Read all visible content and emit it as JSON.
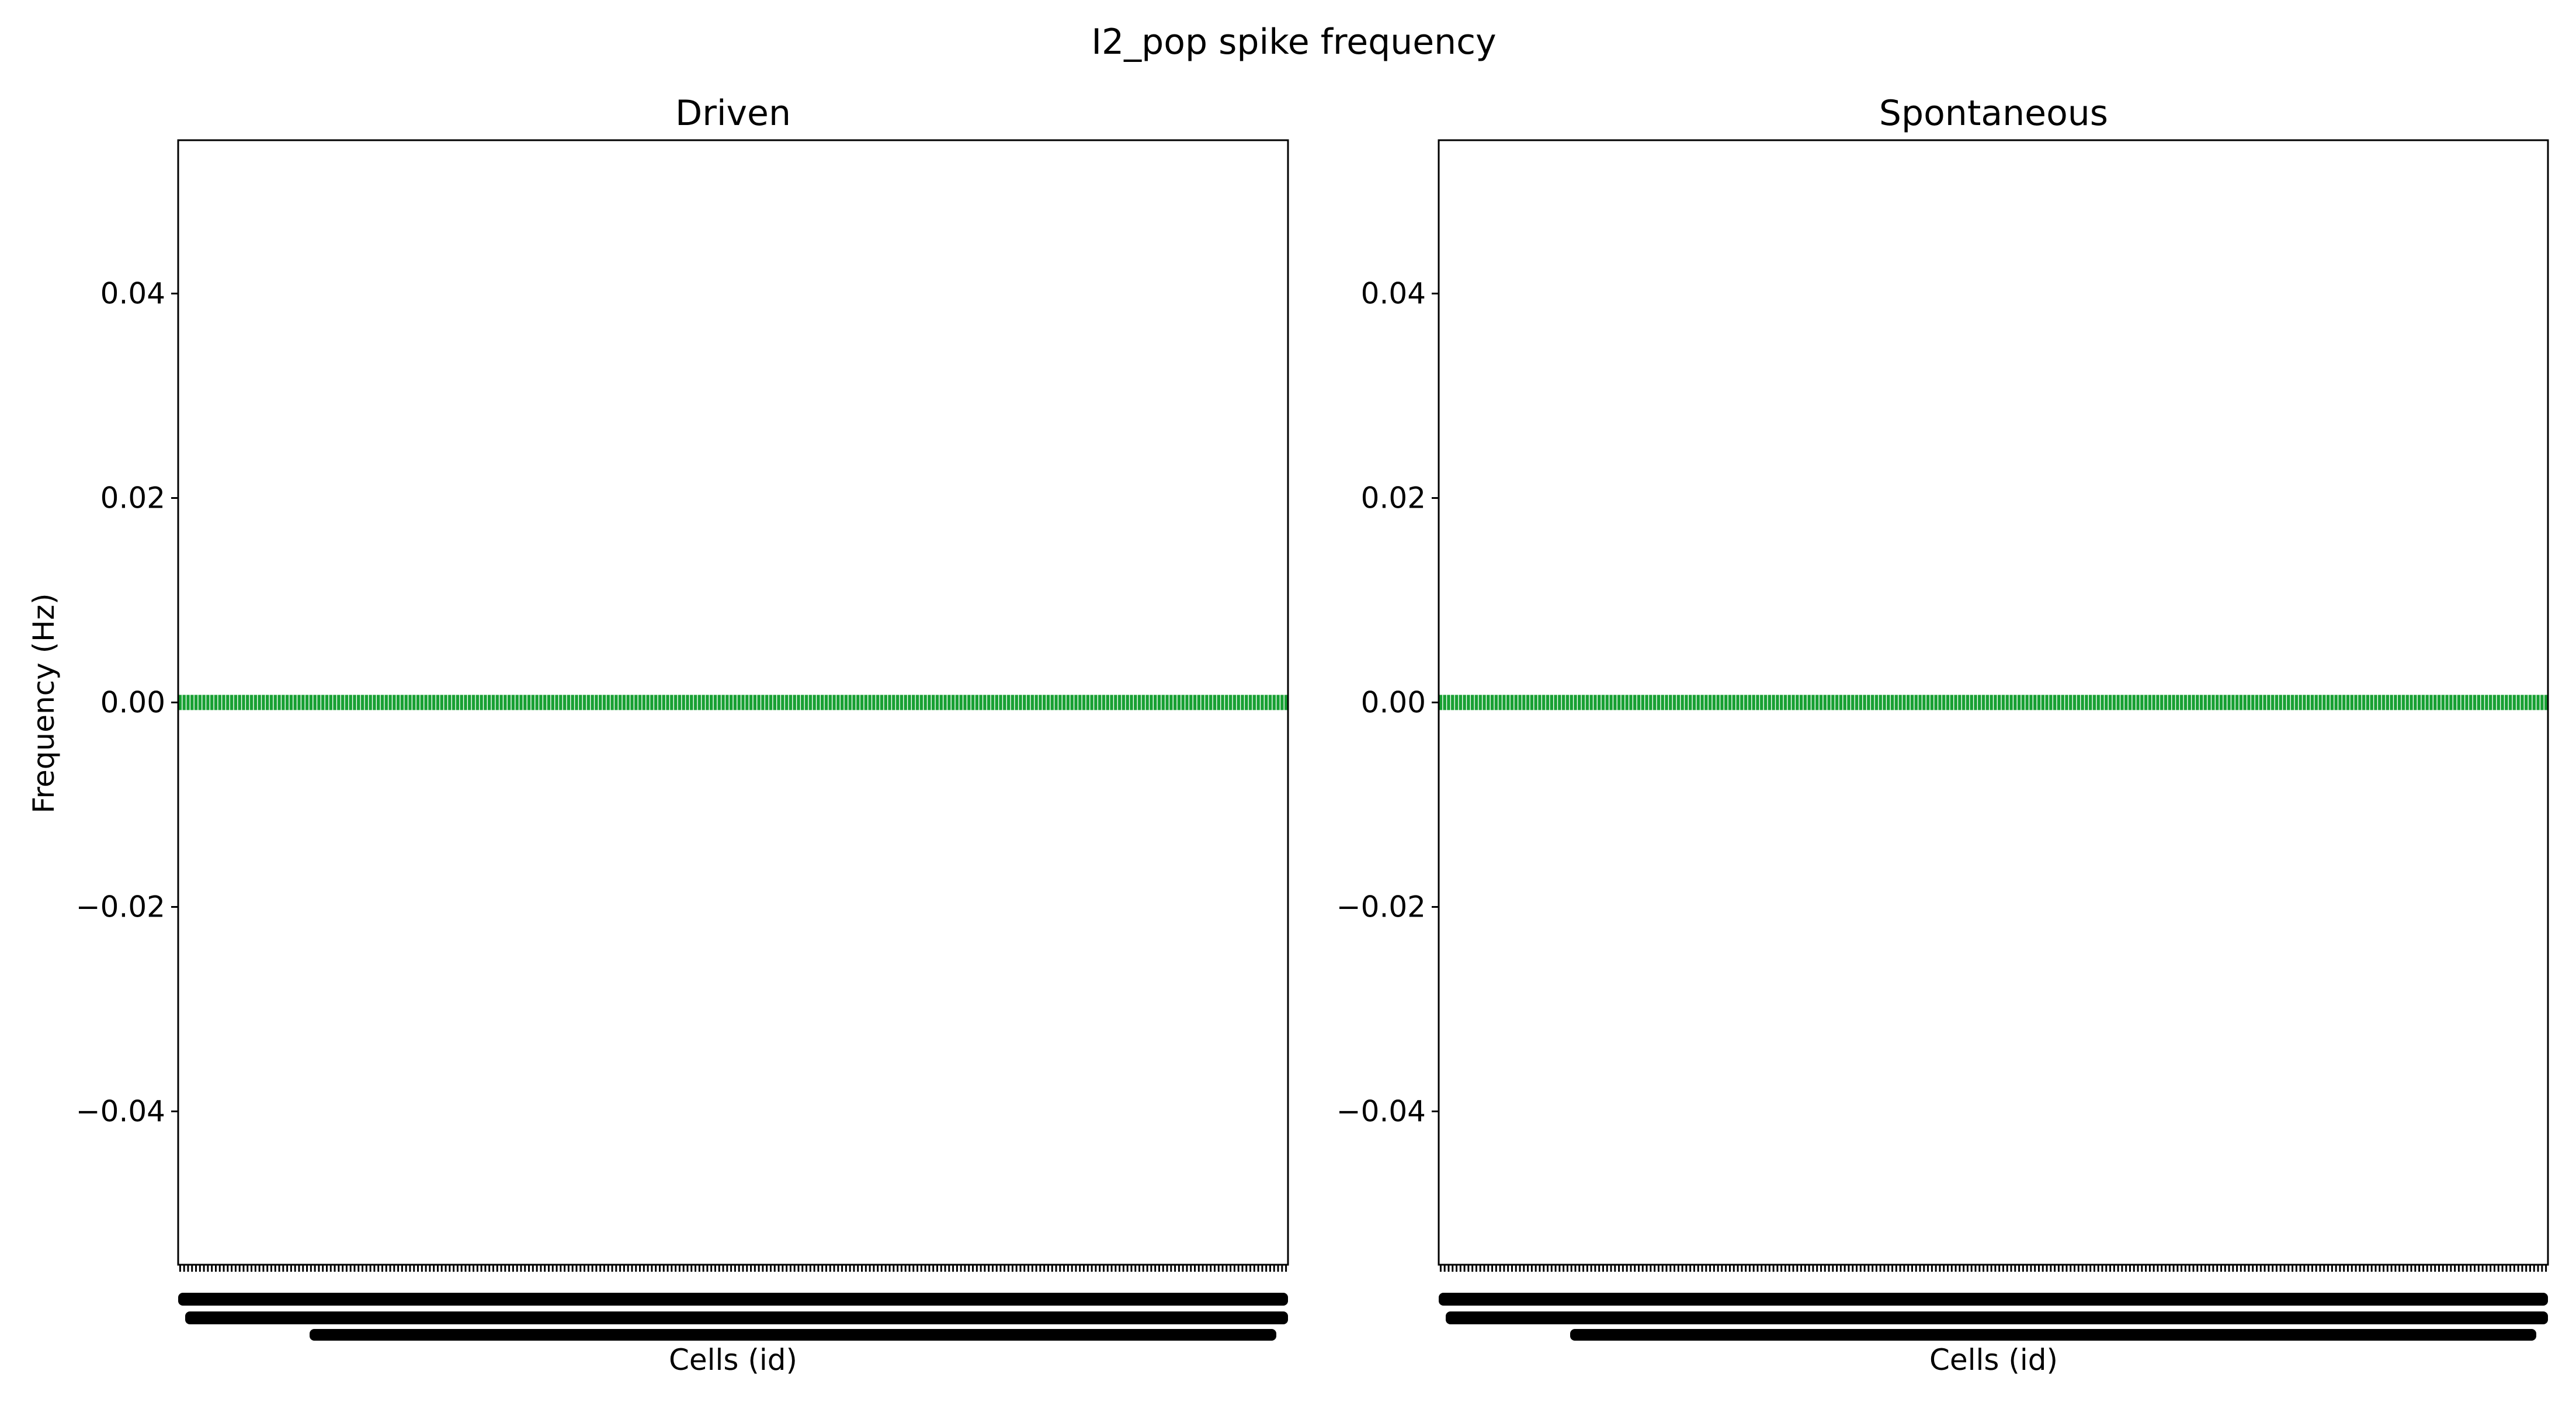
{
  "chart_data": {
    "type": "bar",
    "title": "I2_pop spike frequency",
    "ylabel": "Frequency (Hz)",
    "colors": {
      "bar": "#18a033",
      "axes": "#000000"
    },
    "grid": false,
    "ylim": [
      -0.055,
      0.055
    ],
    "yticks": [
      {
        "value": -0.04,
        "label": "−0.04"
      },
      {
        "value": -0.02,
        "label": "−0.02"
      },
      {
        "value": 0.0,
        "label": "0.00"
      },
      {
        "value": 0.02,
        "label": "0.02"
      },
      {
        "value": 0.04,
        "label": "0.04"
      }
    ],
    "panels": [
      {
        "title": "Driven",
        "xlabel": "Cells (id)",
        "cell_count": 280,
        "value": 0.0
      },
      {
        "title": "Spontaneous",
        "xlabel": "Cells (id)",
        "cell_count": 280,
        "value": 0.0
      }
    ]
  }
}
